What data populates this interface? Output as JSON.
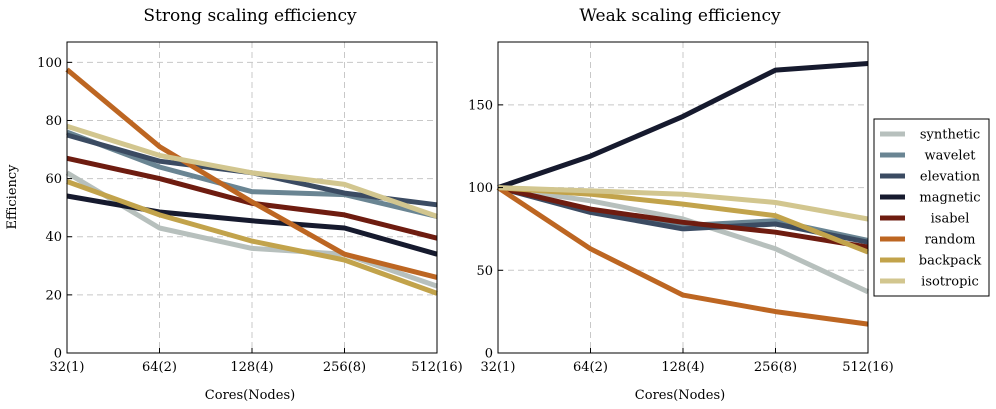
{
  "chart_data": [
    {
      "type": "line",
      "title": "Strong scaling efficiency",
      "xlabel": "Cores(Nodes)",
      "ylabel": "Efficiency",
      "categories": [
        "32(1)",
        "64(2)",
        "128(4)",
        "256(8)",
        "512(16)"
      ],
      "ylim": [
        0,
        107
      ],
      "yticks": [
        0,
        20,
        40,
        60,
        80,
        100
      ],
      "grid": true,
      "series": [
        {
          "name": "synthetic",
          "color": "#b7c0bd",
          "values": [
            62,
            43,
            36,
            34,
            23
          ]
        },
        {
          "name": "wavelet",
          "color": "#6a8593",
          "values": [
            76,
            64,
            55.5,
            54.5,
            47
          ]
        },
        {
          "name": "elevation",
          "color": "#3b4b62",
          "values": [
            75,
            66,
            62,
            55,
            51
          ]
        },
        {
          "name": "magnetic",
          "color": "#161a2e",
          "values": [
            54,
            48.5,
            45.5,
            43,
            34
          ]
        },
        {
          "name": "isabel",
          "color": "#6e1c10",
          "values": [
            67,
            60,
            51.5,
            47.5,
            39.5
          ]
        },
        {
          "name": "random",
          "color": "#bd6622",
          "values": [
            97.5,
            71,
            52,
            34,
            26
          ]
        },
        {
          "name": "backpack",
          "color": "#c2a34b",
          "values": [
            59,
            47.5,
            38.5,
            32,
            20.5
          ]
        },
        {
          "name": "isotropic",
          "color": "#d2c68f",
          "values": [
            78,
            68,
            62,
            58,
            47
          ]
        }
      ]
    },
    {
      "type": "line",
      "title": "Weak scaling efficiency",
      "xlabel": "Cores(Nodes)",
      "ylabel": "",
      "categories": [
        "32(1)",
        "64(2)",
        "128(4)",
        "256(8)",
        "512(16)"
      ],
      "ylim": [
        0,
        188
      ],
      "yticks": [
        0,
        50,
        100,
        150
      ],
      "grid": true,
      "legend": "right",
      "series": [
        {
          "name": "synthetic",
          "color": "#b7c0bd",
          "values": [
            100,
            92,
            81,
            63,
            37
          ]
        },
        {
          "name": "wavelet",
          "color": "#6a8593",
          "values": [
            100,
            86,
            77,
            80,
            68
          ]
        },
        {
          "name": "elevation",
          "color": "#3b4b62",
          "values": [
            100,
            85,
            75,
            78,
            67
          ]
        },
        {
          "name": "magnetic",
          "color": "#161a2e",
          "values": [
            100,
            119,
            143,
            171,
            175
          ]
        },
        {
          "name": "isabel",
          "color": "#6e1c10",
          "values": [
            100,
            87,
            79,
            73,
            64
          ]
        },
        {
          "name": "random",
          "color": "#bd6622",
          "values": [
            100,
            63,
            35,
            25,
            17.5
          ]
        },
        {
          "name": "backpack",
          "color": "#c2a34b",
          "values": [
            100,
            96,
            90,
            83,
            61
          ]
        },
        {
          "name": "isotropic",
          "color": "#d2c68f",
          "values": [
            100,
            98,
            96,
            91,
            81
          ]
        }
      ]
    }
  ]
}
